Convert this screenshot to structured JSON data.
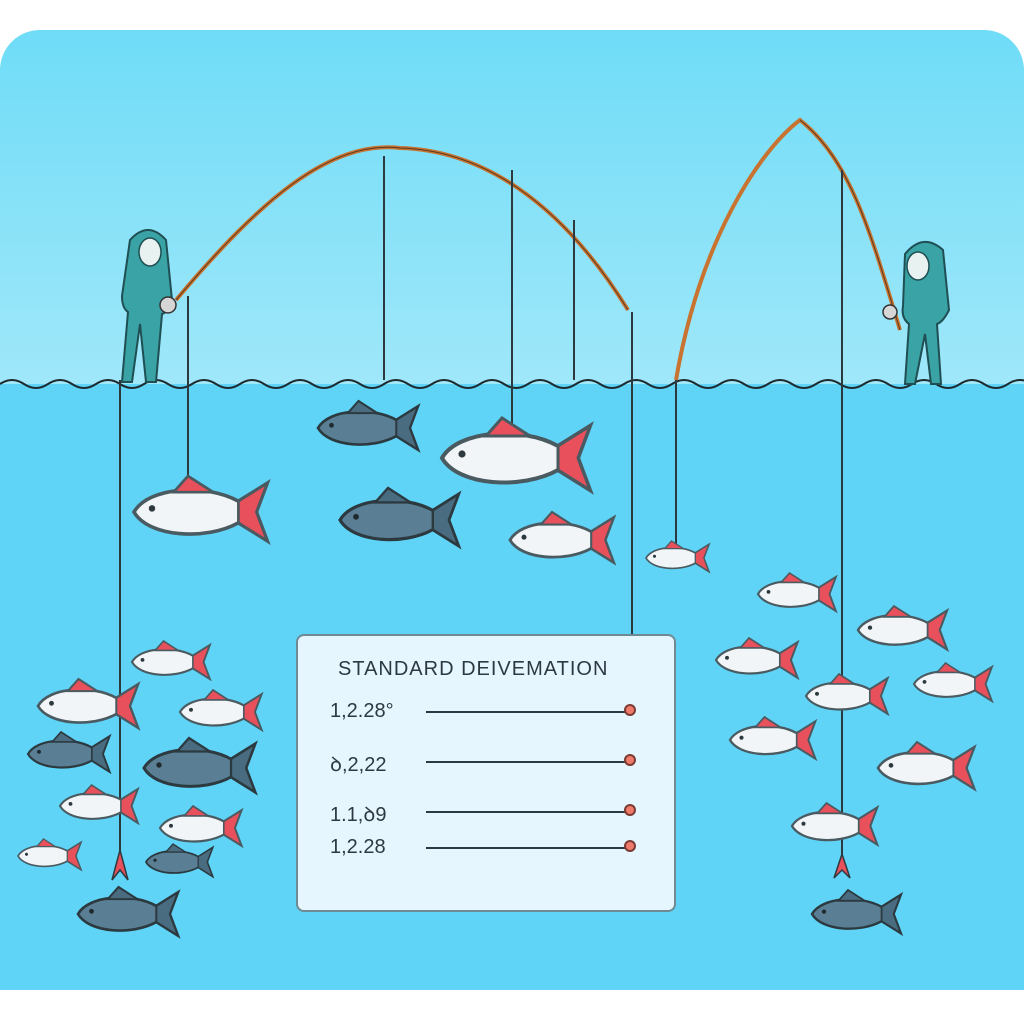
{
  "panel": {
    "title": "STANDARD DEIVEMATION",
    "rows": [
      {
        "value": "1,2.28°"
      },
      {
        "value": "ꝺ,2,22"
      },
      {
        "value": "1.1,ꝺ9"
      },
      {
        "value": "1,2.28"
      }
    ]
  },
  "colors": {
    "sky": "#dff5fb",
    "water": "#5fd4f7",
    "person": "#3aa3a6",
    "rod": "#c8732f",
    "fish_light": "#f2f5f7",
    "fish_dark": "#5a7f94",
    "fin": "#e8505b"
  }
}
